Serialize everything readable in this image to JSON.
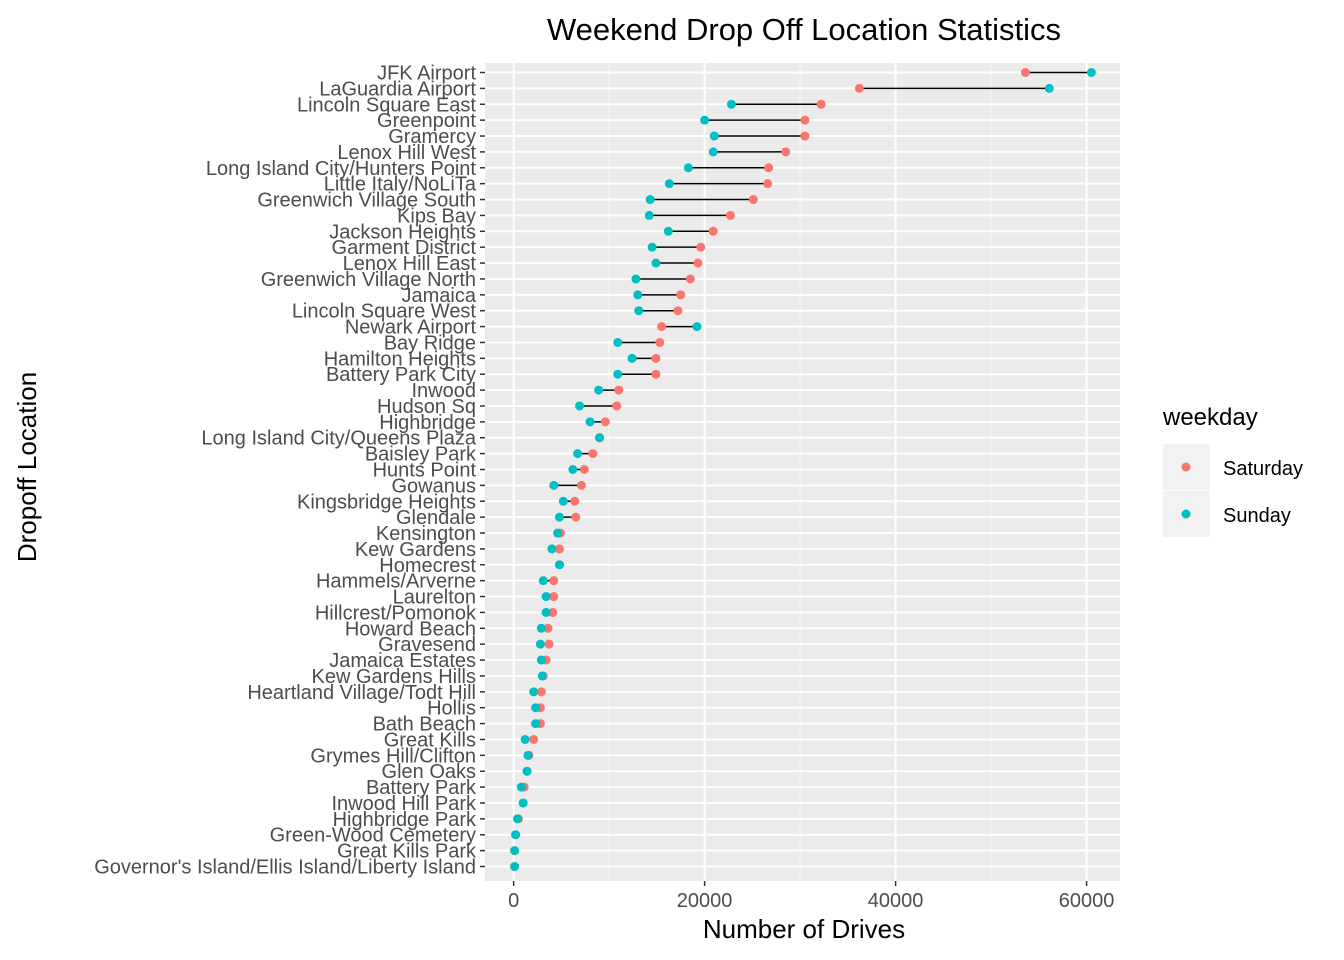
{
  "chart_data": {
    "type": "dumbbell",
    "title": "Weekend Drop Off Location Statistics",
    "xlabel": "Number of Drives",
    "ylabel": "Dropoff Location",
    "xlim": [
      -3000,
      63500
    ],
    "xticks": [
      0,
      20000,
      40000,
      60000
    ],
    "xtick_labels": [
      "0",
      "20000",
      "40000",
      "60000"
    ],
    "grid": true,
    "legend": {
      "title": "weekday",
      "position": "right",
      "entries": [
        {
          "name": "Saturday",
          "color": "#F8766D"
        },
        {
          "name": "Sunday",
          "color": "#00BFC4"
        }
      ]
    },
    "categories": [
      "JFK Airport",
      "LaGuardia Airport",
      "Lincoln Square East",
      "Greenpoint",
      "Gramercy",
      "Lenox Hill West",
      "Long Island City/Hunters Point",
      "Little Italy/NoLiTa",
      "Greenwich Village South",
      "Kips Bay",
      "Jackson Heights",
      "Garment District",
      "Lenox Hill East",
      "Greenwich Village North",
      "Jamaica",
      "Lincoln Square West",
      "Newark Airport",
      "Bay Ridge",
      "Hamilton Heights",
      "Battery Park City",
      "Inwood",
      "Hudson Sq",
      "Highbridge",
      "Long Island City/Queens Plaza",
      "Baisley Park",
      "Hunts Point",
      "Gowanus",
      "Kingsbridge Heights",
      "Glendale",
      "Kensington",
      "Kew Gardens",
      "Homecrest",
      "Hammels/Arverne",
      "Laurelton",
      "Hillcrest/Pomonok",
      "Howard Beach",
      "Gravesend",
      "Jamaica Estates",
      "Kew Gardens Hills",
      "Heartland Village/Todt Hill",
      "Hollis",
      "Bath Beach",
      "Great Kills",
      "Grymes Hill/Clifton",
      "Glen Oaks",
      "Battery Park",
      "Inwood Hill Park",
      "Highbridge Park",
      "Green-Wood Cemetery",
      "Great Kills Park",
      "Governor's Island/Ellis Island/Liberty Island"
    ],
    "series": [
      {
        "name": "Saturday",
        "color": "#F8766D",
        "values": [
          53600,
          36200,
          32200,
          30500,
          30500,
          28500,
          26700,
          26600,
          25100,
          22700,
          20900,
          19600,
          19300,
          18500,
          17500,
          17200,
          15500,
          15300,
          14900,
          14900,
          11000,
          10800,
          9600,
          9000,
          8300,
          7400,
          7100,
          6400,
          6500,
          4900,
          4800,
          4800,
          4200,
          4200,
          4100,
          3600,
          3700,
          3400,
          3100,
          2900,
          2800,
          2800,
          2100,
          1600,
          1400,
          1100,
          1000,
          500,
          200,
          100,
          100
        ]
      },
      {
        "name": "Sunday",
        "color": "#00BFC4",
        "values": [
          60500,
          56100,
          22800,
          20000,
          21000,
          20900,
          18300,
          16300,
          14300,
          14200,
          16200,
          14500,
          14900,
          12800,
          13000,
          13100,
          19200,
          10900,
          12400,
          10900,
          8900,
          6900,
          8000,
          9000,
          6700,
          6200,
          4200,
          5200,
          4800,
          4600,
          4000,
          4800,
          3100,
          3400,
          3400,
          2900,
          2800,
          2900,
          3000,
          2100,
          2300,
          2300,
          1200,
          1500,
          1400,
          800,
          1000,
          400,
          200,
          100,
          100
        ]
      }
    ]
  }
}
